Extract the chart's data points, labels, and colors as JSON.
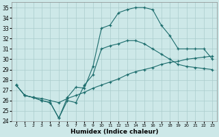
{
  "xlabel": "Humidex (Indice chaleur)",
  "xlim": [
    -0.5,
    23.5
  ],
  "ylim": [
    24,
    35.5
  ],
  "xticks": [
    0,
    1,
    2,
    3,
    4,
    5,
    6,
    7,
    8,
    9,
    10,
    11,
    12,
    13,
    14,
    15,
    16,
    17,
    18,
    19,
    20,
    21,
    22,
    23
  ],
  "yticks": [
    24,
    25,
    26,
    27,
    28,
    29,
    30,
    31,
    32,
    33,
    34,
    35
  ],
  "bg_color": "#cde8e8",
  "line_color": "#1a6b6b",
  "grid_color": "#aacccc",
  "line1_x": [
    0,
    1,
    2,
    3,
    4,
    5,
    6,
    7,
    8,
    9,
    10,
    11,
    12,
    13,
    14,
    15,
    16,
    17,
    18,
    19,
    20,
    21,
    22,
    23
  ],
  "line1_y": [
    27.5,
    26.5,
    26.3,
    26.0,
    25.8,
    24.3,
    26.3,
    27.3,
    27.2,
    29.3,
    33.0,
    33.3,
    34.5,
    34.8,
    35.0,
    35.0,
    34.8,
    33.3,
    32.3,
    31.0,
    31.0,
    31.0,
    31.0,
    30.0
  ],
  "line2_x": [
    0,
    1,
    2,
    3,
    4,
    5,
    6,
    7,
    8,
    9,
    10,
    11,
    12,
    13,
    14,
    15,
    16,
    17,
    18,
    19,
    20,
    21,
    22,
    23
  ],
  "line2_y": [
    27.5,
    26.5,
    26.3,
    26.2,
    26.0,
    25.8,
    26.2,
    26.5,
    26.8,
    27.2,
    27.5,
    27.8,
    28.1,
    28.5,
    28.8,
    29.0,
    29.2,
    29.5,
    29.7,
    29.8,
    30.0,
    30.1,
    30.2,
    30.3
  ],
  "line3_x": [
    0,
    1,
    2,
    3,
    4,
    5,
    6,
    7,
    8,
    9,
    10,
    11,
    12,
    13,
    14,
    15,
    16,
    17,
    18,
    19,
    20,
    21,
    22,
    23
  ],
  "line3_y": [
    27.5,
    26.5,
    26.3,
    26.0,
    25.8,
    24.3,
    26.0,
    25.8,
    27.5,
    28.5,
    31.0,
    31.3,
    31.5,
    31.8,
    31.8,
    31.5,
    31.0,
    30.5,
    30.0,
    29.5,
    29.3,
    29.2,
    29.1,
    29.0
  ]
}
